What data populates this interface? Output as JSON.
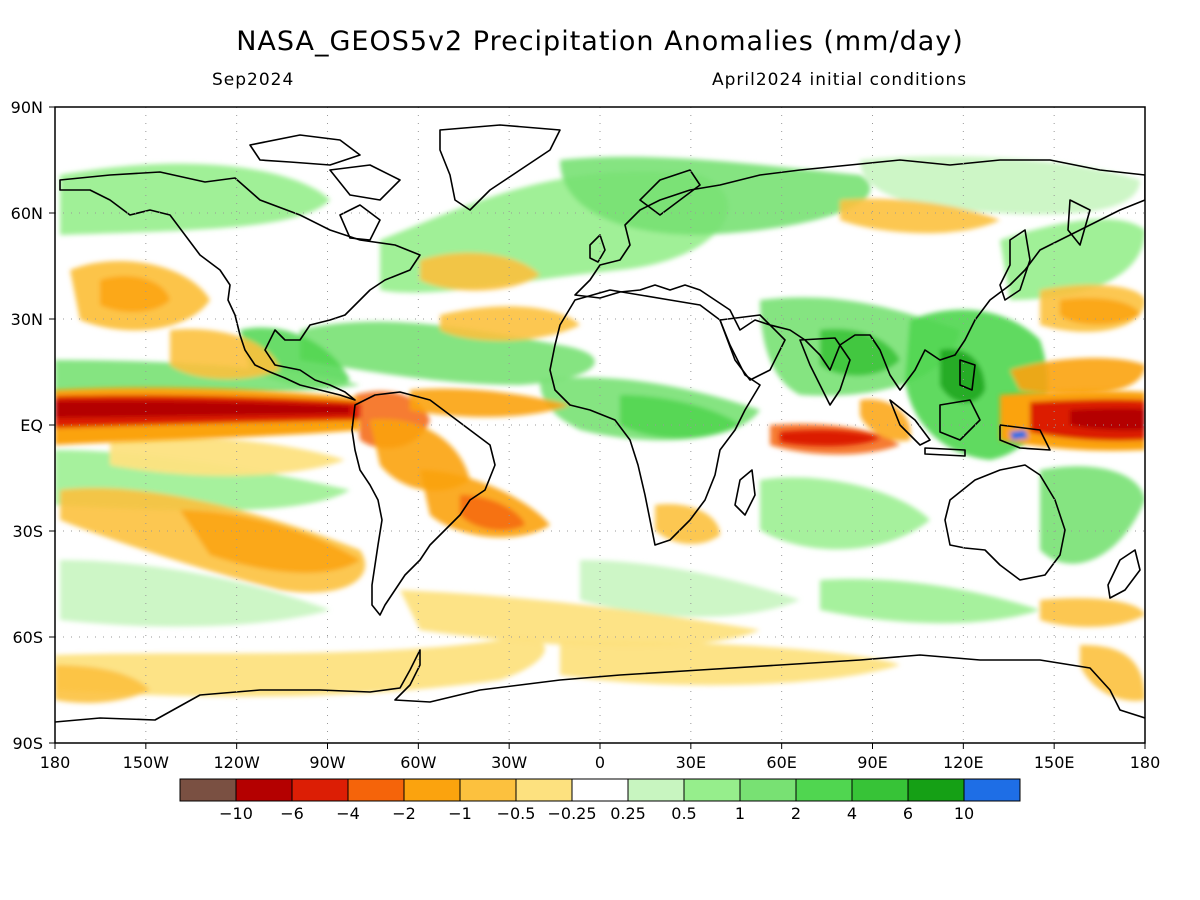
{
  "title": "NASA_GEOS5v2 Precipitation Anomalies (mm/day)",
  "subtitle_left": "Sep2024",
  "subtitle_right": "April2024 initial conditions",
  "map": {
    "lat_labels": [
      "90N",
      "60N",
      "30N",
      "EQ",
      "30S",
      "60S",
      "90S"
    ],
    "lon_labels": [
      "180",
      "150W",
      "120W",
      "90W",
      "60W",
      "30W",
      "0",
      "30E",
      "60E",
      "90E",
      "120E",
      "150E",
      "180"
    ],
    "projection": "equirectangular",
    "lon_range": [
      -180,
      180
    ],
    "lat_range": [
      -90,
      90
    ],
    "grid": "dotted"
  },
  "colorbar": {
    "labels": [
      "-10",
      "-6",
      "-4",
      "-2",
      "-1",
      "-0.5",
      "-0.25",
      "0.25",
      "0.5",
      "1",
      "2",
      "4",
      "6",
      "10"
    ],
    "colors": [
      "#7a5042",
      "#b40000",
      "#dc1e05",
      "#f5640a",
      "#fba30e",
      "#fcc13e",
      "#fde17f",
      "#ffffff",
      "#c8f5c0",
      "#96ee8c",
      "#78e173",
      "#50d650",
      "#37c337",
      "#15a015",
      "#1e6ee6"
    ]
  },
  "chart_data": {
    "type": "heatmap",
    "title": "NASA_GEOS5v2 Precipitation Anomalies (mm/day)",
    "subtitle": "Sep2024",
    "note": "April2024 initial conditions",
    "units": "mm/day",
    "xlim": [
      -180,
      180
    ],
    "ylim": [
      -90,
      90
    ],
    "levels": [
      -10,
      -6,
      -4,
      -2,
      -1,
      -0.5,
      -0.25,
      0.25,
      0.5,
      1,
      2,
      4,
      6,
      10
    ],
    "features": [
      {
        "region": "eastern equatorial Pacific (ITCZ ~5N)",
        "anomaly": "-6 to -10"
      },
      {
        "region": "eastern Indian Ocean / Maritime Continent southern",
        "anomaly": "-2 to -6"
      },
      {
        "region": "western equatorial Pacific near dateline",
        "anomaly": "-4 to -6"
      },
      {
        "region": "northern South America / Amazon",
        "anomaly": "-1 to -4"
      },
      {
        "region": "South Pacific convergence band",
        "anomaly": "-0.5 to -2"
      },
      {
        "region": "South Atlantic off Brazil",
        "anomaly": "-1 to -2"
      },
      {
        "region": "Southern Ocean ring ~65S",
        "anomaly": "-0.25 to -1"
      },
      {
        "region": "Atlantic ITCZ / West Africa",
        "anomaly": "+0.5 to +4"
      },
      {
        "region": "Indian subcontinent / Bay of Bengal",
        "anomaly": "+1 to +6"
      },
      {
        "region": "Central America / Caribbean",
        "anomaly": "+1 to +4"
      },
      {
        "region": "Maritime Continent / Philippines",
        "anomaly": "+2 to +10"
      },
      {
        "region": "North Atlantic / Europe storm track",
        "anomaly": "+0.5 to +2"
      },
      {
        "region": "eastern North Pacific subtropics",
        "anomaly": "-0.5 to -2"
      }
    ]
  }
}
